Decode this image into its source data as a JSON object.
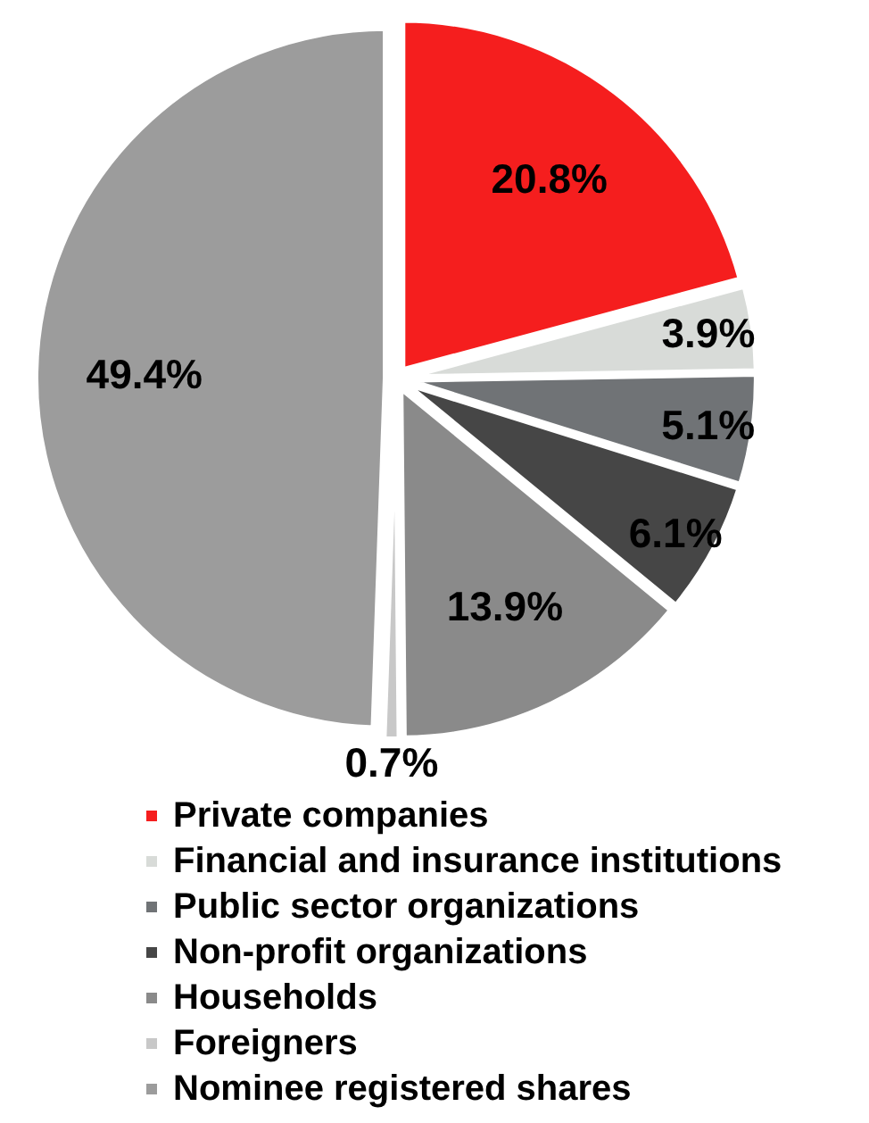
{
  "chart_data": {
    "type": "pie",
    "categories": [
      "Private companies",
      "Financial and insurance institutions",
      "Public sector organizations",
      "Non-profit organizations",
      "Households",
      "Foreigners",
      "Nominee registered shares"
    ],
    "values": [
      20.8,
      3.9,
      5.1,
      6.1,
      13.9,
      0.7,
      49.4
    ],
    "colors": [
      "#f51e1e",
      "#d8dbd8",
      "#707376",
      "#464646",
      "#8a8a8a",
      "#c8c8c8",
      "#9c9c9c"
    ],
    "value_labels": [
      "20.8%",
      "3.9%",
      "5.1%",
      "6.1%",
      "13.9%",
      "0.7%",
      "49.4%"
    ],
    "legend": "bottom"
  }
}
